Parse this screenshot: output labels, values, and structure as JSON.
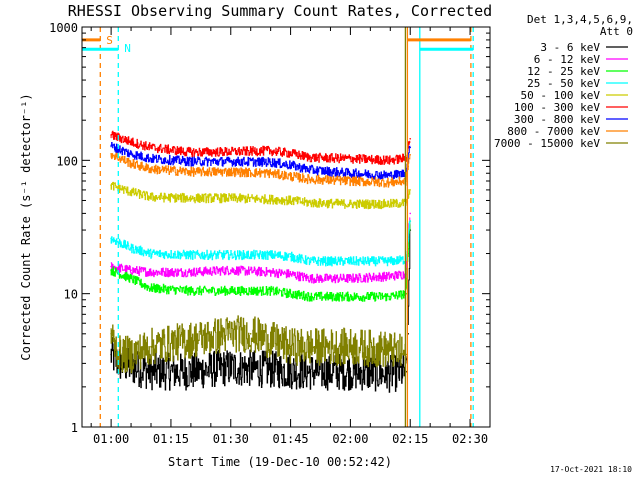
{
  "chart_data": {
    "type": "line",
    "title": "RHESSI Observing Summary Count Rates, Corrected",
    "xlabel": "Start Time (19-Dec-10 00:52:42)",
    "ylabel": "Corrected Count Rate (s⁻¹ detector⁻¹)",
    "yscale": "log",
    "ylim": [
      1,
      1000
    ],
    "xlim_minutes": [
      52.7,
      155.0
    ],
    "y_ticks": [
      "1",
      "10",
      "100",
      "1000"
    ],
    "x_ticks": [
      {
        "label": "01:00",
        "t": 60
      },
      {
        "label": "01:15",
        "t": 75
      },
      {
        "label": "01:30",
        "t": 90
      },
      {
        "label": "01:45",
        "t": 105
      },
      {
        "label": "02:00",
        "t": 120
      },
      {
        "label": "02:15",
        "t": 135
      },
      {
        "label": "02:30",
        "t": 150
      }
    ],
    "legend_header": [
      "Det 1,3,4,5,6,9,",
      "Att 0"
    ],
    "legend_position": "top-right",
    "series": [
      {
        "name": "3 - 6 keV",
        "color": "#000000",
        "t": [
          60,
          62,
          70,
          80,
          90,
          100,
          110,
          120,
          130,
          134,
          134.5,
          135
        ],
        "values": [
          3.5,
          3.0,
          2.6,
          2.6,
          2.8,
          2.7,
          2.6,
          2.6,
          2.5,
          2.6,
          5,
          30
        ]
      },
      {
        "name": "6 - 12 keV",
        "color": "#ff00ff",
        "t": [
          60,
          65,
          70,
          80,
          90,
          100,
          105,
          110,
          120,
          130,
          134,
          134.5,
          135
        ],
        "values": [
          16,
          15,
          14.5,
          14.5,
          15,
          14.5,
          14,
          13,
          13,
          13.5,
          14,
          25,
          40
        ]
      },
      {
        "name": "12 - 25 keV",
        "color": "#00ff00",
        "t": [
          60,
          65,
          70,
          80,
          90,
          100,
          105,
          110,
          120,
          130,
          134,
          134.5,
          135
        ],
        "values": [
          15,
          13,
          11,
          10.5,
          10.5,
          10.5,
          10,
          9.5,
          9.5,
          9.5,
          10,
          20,
          35
        ]
      },
      {
        "name": "25 - 50 keV",
        "color": "#00ffff",
        "t": [
          60,
          65,
          70,
          80,
          90,
          100,
          105,
          110,
          120,
          130,
          134,
          134.5,
          135
        ],
        "values": [
          26,
          22,
          20,
          19.5,
          19.5,
          19.5,
          19,
          17.5,
          17.5,
          17.5,
          18,
          25,
          35
        ]
      },
      {
        "name": "50 - 100 keV",
        "color": "#cccc00",
        "t": [
          60,
          65,
          70,
          80,
          90,
          100,
          105,
          110,
          120,
          130,
          134,
          134.5,
          135
        ],
        "values": [
          65,
          58,
          53,
          52,
          52,
          51,
          50,
          48,
          47,
          47,
          48,
          52,
          60
        ]
      },
      {
        "name": "100 - 300 keV",
        "color": "#ff0000",
        "t": [
          60,
          65,
          70,
          80,
          90,
          100,
          105,
          110,
          120,
          130,
          134,
          134.5,
          135
        ],
        "values": [
          155,
          138,
          125,
          115,
          116,
          118,
          113,
          105,
          103,
          100,
          104,
          125,
          145
        ]
      },
      {
        "name": "300 - 800 keV",
        "color": "#0000ff",
        "t": [
          60,
          65,
          70,
          80,
          90,
          100,
          105,
          110,
          120,
          130,
          134,
          134.5,
          135
        ],
        "values": [
          128,
          112,
          103,
          98,
          98,
          97,
          92,
          85,
          80,
          77,
          80,
          100,
          125
        ]
      },
      {
        "name": "800 - 7000 keV",
        "color": "#ff8000",
        "t": [
          60,
          65,
          70,
          80,
          90,
          100,
          105,
          110,
          120,
          130,
          134,
          134.5,
          135
        ],
        "values": [
          112,
          95,
          86,
          82,
          82,
          80,
          76,
          72,
          70,
          68,
          70,
          90,
          110
        ]
      },
      {
        "name": "7000 - 15000 keV",
        "color": "#808000",
        "t": [
          60,
          62,
          65,
          70,
          80,
          90,
          95,
          100,
          105,
          110,
          120,
          130,
          134
        ],
        "values": [
          5,
          3.5,
          3.5,
          4.0,
          4.5,
          5.0,
          5.0,
          4.5,
          4.0,
          4.0,
          4.0,
          3.8,
          3.5
        ]
      }
    ],
    "annotations": [
      {
        "label": "S",
        "t": 57.3,
        "color": "#ff8000"
      },
      {
        "label": "N",
        "t": 61.8,
        "color": "#00ffff"
      }
    ],
    "markers": [
      {
        "kind": "orange-dashed",
        "t": 57.3
      },
      {
        "kind": "cyan-dashed",
        "t": 61.8
      },
      {
        "kind": "olive-solid",
        "t": 133.8
      },
      {
        "kind": "orange-solid",
        "t": 134.3
      },
      {
        "kind": "cyan-solid",
        "t": 137.4
      },
      {
        "kind": "orange-dashed",
        "t": 150.2
      },
      {
        "kind": "cyan-dashed",
        "t": 150.8
      }
    ],
    "flags": [
      {
        "kind": "orange",
        "segments": [
          [
            52.7,
            57.3
          ],
          [
            134.3,
            150.2
          ]
        ],
        "value": 800
      },
      {
        "kind": "cyan",
        "segments": [
          [
            52.7,
            61.8
          ],
          [
            137.4,
            150.8
          ]
        ],
        "value": 680
      }
    ],
    "timestamp": "17-Oct-2021 18:10"
  }
}
